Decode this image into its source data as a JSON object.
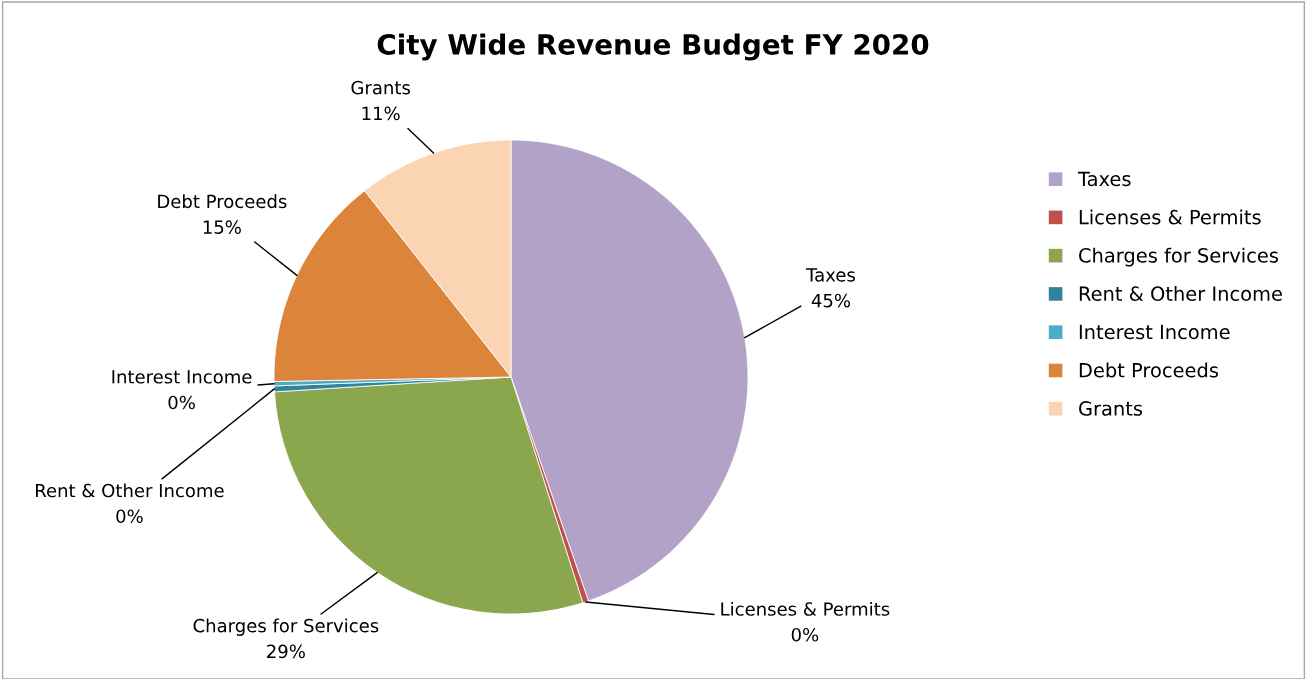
{
  "chart_data": {
    "type": "pie",
    "title": "City Wide Revenue Budget FY 2020",
    "categories": [
      "Taxes",
      "Licenses & Permits",
      "Charges for Services",
      "Rent & Other Income",
      "Interest Income",
      "Debt Proceeds",
      "Grants"
    ],
    "values": [
      44.7,
      0.4,
      28.9,
      0.4,
      0.3,
      14.7,
      10.6
    ],
    "value_labels": [
      "45%",
      "0%",
      "29%",
      "0%",
      "0%",
      "15%",
      "11%"
    ],
    "colors": [
      "#b3a2c7",
      "#c0504d",
      "#8ba74d",
      "#31849b",
      "#4bacc6",
      "#dd843b",
      "#fbd4b4"
    ],
    "legend": "right"
  }
}
